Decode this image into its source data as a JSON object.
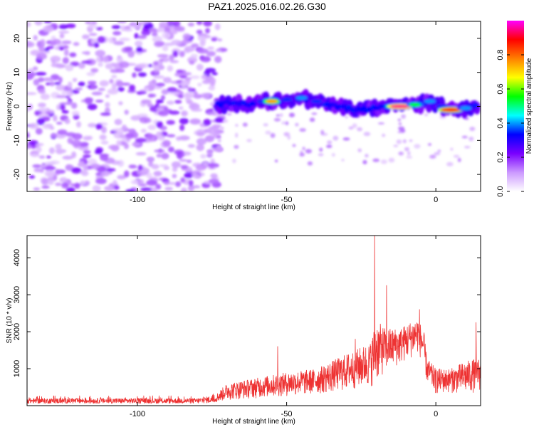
{
  "title": "PAZ1.2025.016.02.26.G30",
  "chart_data": [
    {
      "type": "heatmap",
      "xlabel": "Height of straight line (km)",
      "ylabel": "Frequency (Hz)",
      "xlim": [
        -137,
        15
      ],
      "ylim": [
        -25,
        25
      ],
      "x_ticks": [
        -100,
        -50,
        0
      ],
      "y_ticks": [
        -20,
        -10,
        0,
        10,
        20
      ],
      "colorbar": {
        "label": "Normalized spectral amplitude",
        "range": [
          0,
          1
        ],
        "ticks": [
          "0.0",
          "0.2",
          "0.4",
          "0.6",
          "0.8"
        ],
        "colors": [
          "#ffffff",
          "#cc99ff",
          "#7a00ff",
          "#0000ff",
          "#00ffff",
          "#00ff00",
          "#ffff00",
          "#ff7f00",
          "#ff0000",
          "#ff00ff"
        ]
      },
      "noise_region_end_km": -73,
      "signal_track": [
        {
          "x": -73,
          "freq": 0.5,
          "amp": 0.3
        },
        {
          "x": -68,
          "freq": 1.0,
          "amp": 0.25
        },
        {
          "x": -62,
          "freq": 0.5,
          "amp": 0.25
        },
        {
          "x": -58,
          "freq": 1.5,
          "amp": 0.35
        },
        {
          "x": -55,
          "freq": 1.5,
          "amp": 0.75
        },
        {
          "x": -50,
          "freq": 2.0,
          "amp": 0.35
        },
        {
          "x": -45,
          "freq": 2.5,
          "amp": 0.4
        },
        {
          "x": -40,
          "freq": 1.5,
          "amp": 0.35
        },
        {
          "x": -35,
          "freq": 0.5,
          "amp": 0.3
        },
        {
          "x": -30,
          "freq": -0.5,
          "amp": 0.25
        },
        {
          "x": -25,
          "freq": -1.0,
          "amp": 0.25
        },
        {
          "x": -20,
          "freq": -0.5,
          "amp": 0.3
        },
        {
          "x": -15,
          "freq": 0.0,
          "amp": 0.5
        },
        {
          "x": -12,
          "freq": 0.0,
          "amp": 0.95
        },
        {
          "x": -7,
          "freq": 0.5,
          "amp": 0.55
        },
        {
          "x": -2,
          "freq": 1.5,
          "amp": 0.4
        },
        {
          "x": 2,
          "freq": 0.0,
          "amp": 0.35
        },
        {
          "x": 5,
          "freq": -1.0,
          "amp": 0.9
        },
        {
          "x": 10,
          "freq": -0.5,
          "amp": 0.4
        },
        {
          "x": 14,
          "freq": 0.5,
          "amp": 0.3
        }
      ]
    },
    {
      "type": "line",
      "xlabel": "Height of straight line (km)",
      "ylabel": "SNR (10 * v/v)",
      "xlim": [
        -137,
        15
      ],
      "ylim": [
        0,
        4600
      ],
      "x_ticks": [
        -100,
        -50,
        0
      ],
      "y_ticks": [
        1000,
        2000,
        3000,
        4000
      ],
      "color": "#ee3333",
      "envelope": [
        {
          "x": -137,
          "low": 60,
          "high": 200
        },
        {
          "x": -80,
          "low": 60,
          "high": 200
        },
        {
          "x": -74,
          "low": 80,
          "high": 280
        },
        {
          "x": -70,
          "low": 150,
          "high": 600
        },
        {
          "x": -60,
          "low": 200,
          "high": 750
        },
        {
          "x": -50,
          "low": 250,
          "high": 900
        },
        {
          "x": -40,
          "low": 300,
          "high": 1000
        },
        {
          "x": -30,
          "low": 400,
          "high": 1400
        },
        {
          "x": -22,
          "low": 500,
          "high": 1700
        },
        {
          "x": -20,
          "low": 600,
          "high": 2300
        },
        {
          "x": -17,
          "low": 900,
          "high": 2100
        },
        {
          "x": -12,
          "low": 1100,
          "high": 2100
        },
        {
          "x": -6,
          "low": 1400,
          "high": 2400
        },
        {
          "x": -4,
          "low": 1100,
          "high": 2000
        },
        {
          "x": -3,
          "low": 600,
          "high": 1300
        },
        {
          "x": 0,
          "low": 300,
          "high": 1000
        },
        {
          "x": 5,
          "low": 350,
          "high": 1000
        },
        {
          "x": 10,
          "low": 300,
          "high": 1200
        },
        {
          "x": 15,
          "low": 400,
          "high": 1300
        }
      ],
      "spikes": [
        {
          "x": -20.5,
          "y": 4600
        },
        {
          "x": -16.5,
          "y": 3250
        },
        {
          "x": -5.5,
          "y": 2600
        },
        {
          "x": 13.5,
          "y": 2250
        },
        {
          "x": -27,
          "y": 1800
        },
        {
          "x": -53,
          "y": 1600
        }
      ]
    }
  ]
}
